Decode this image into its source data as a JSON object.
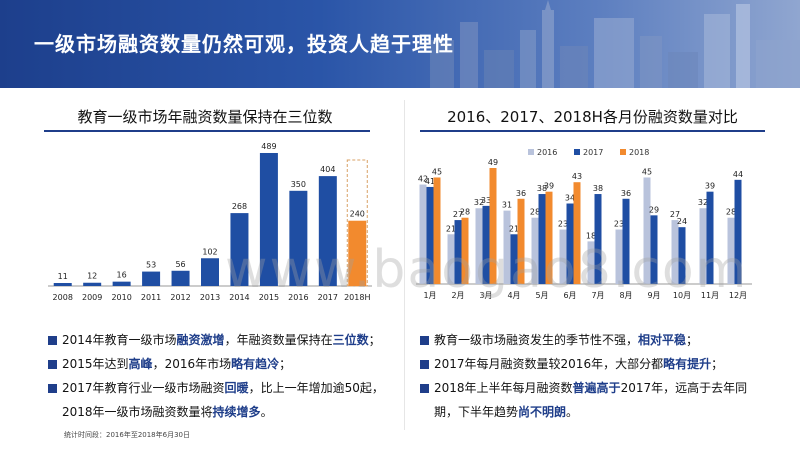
{
  "header": {
    "title": "一级市场融资数量仍然可观，投资人趋于理性"
  },
  "left": {
    "title": "教育一级市场年融资数量保持在三位数",
    "bullets": [
      {
        "parts": [
          {
            "t": "2014年教育一级市场"
          },
          {
            "t": "融资激增",
            "b": true
          },
          {
            "t": "，年融资数量保持在"
          },
          {
            "t": "三位数",
            "b": true
          },
          {
            "t": "；"
          }
        ]
      },
      {
        "parts": [
          {
            "t": "2015年达到"
          },
          {
            "t": "高峰",
            "b": true
          },
          {
            "t": "，2016年市场"
          },
          {
            "t": "略有趋冷",
            "b": true
          },
          {
            "t": "；"
          }
        ]
      },
      {
        "parts": [
          {
            "t": "2017年教育行业一级市场融资"
          },
          {
            "t": "回暖",
            "b": true
          },
          {
            "t": "，比上一年增加逾50起，"
          }
        ]
      },
      {
        "parts": [
          {
            "t": "2018年一级市场融资数量将"
          },
          {
            "t": "持续增多",
            "b": true
          },
          {
            "t": "。"
          }
        ],
        "indent": true
      }
    ]
  },
  "right": {
    "title": "2016、2017、2018H各月份融资数量对比",
    "bullets": [
      {
        "parts": [
          {
            "t": "教育一级市场融资发生的季节性不强，"
          },
          {
            "t": "相对平稳",
            "b": true
          },
          {
            "t": "；"
          }
        ]
      },
      {
        "parts": [
          {
            "t": "2017年每月融资数量较2016年，大部分都"
          },
          {
            "t": "略有提升",
            "b": true
          },
          {
            "t": "；"
          }
        ]
      },
      {
        "parts": [
          {
            "t": "2018年上半年每月融资数"
          },
          {
            "t": "普遍高于",
            "b": true
          },
          {
            "t": "2017年，远高于去年同"
          }
        ]
      },
      {
        "parts": [
          {
            "t": "期，下半年趋势"
          },
          {
            "t": "尚不明朗",
            "b": true
          },
          {
            "t": "。"
          }
        ],
        "indent": true
      }
    ]
  },
  "footnote": "统计时间段：2016年至2018年6月30日",
  "watermark": "www.baogao8.com",
  "colors": {
    "accent": "#1f3e8a",
    "bar2017": "#1f4ea3",
    "bar2016": "#b9c3dc",
    "bar2018": "#f28a2e",
    "dashed": "#d8a165"
  },
  "chart_data": [
    {
      "type": "bar",
      "categories": [
        "2008",
        "2009",
        "2010",
        "2011",
        "2012",
        "2013",
        "2014",
        "2015",
        "2016",
        "2017",
        "2018H"
      ],
      "values": [
        11,
        12,
        16,
        53,
        56,
        102,
        268,
        489,
        350,
        404,
        240
      ],
      "highlight_last": true,
      "title": "教育一级市场年融资数量保持在三位数",
      "ylim": [
        0,
        500
      ]
    },
    {
      "type": "bar",
      "categories": [
        "1月",
        "2月",
        "3月",
        "4月",
        "5月",
        "6月",
        "7月",
        "8月",
        "9月",
        "10月",
        "11月",
        "12月"
      ],
      "series": [
        {
          "name": "2016",
          "values": [
            42,
            21,
            32,
            31,
            28,
            23,
            18,
            23,
            45,
            27,
            32,
            28
          ]
        },
        {
          "name": "2017",
          "values": [
            41,
            27,
            33,
            21,
            38,
            34,
            38,
            36,
            29,
            24,
            39,
            44
          ]
        },
        {
          "name": "2018",
          "values": [
            45,
            28,
            49,
            36,
            39,
            43,
            null,
            null,
            null,
            null,
            null,
            null
          ]
        }
      ],
      "legend": "top",
      "title": "2016、2017、2018H各月份融资数量对比",
      "ylim": [
        0,
        55
      ]
    }
  ]
}
